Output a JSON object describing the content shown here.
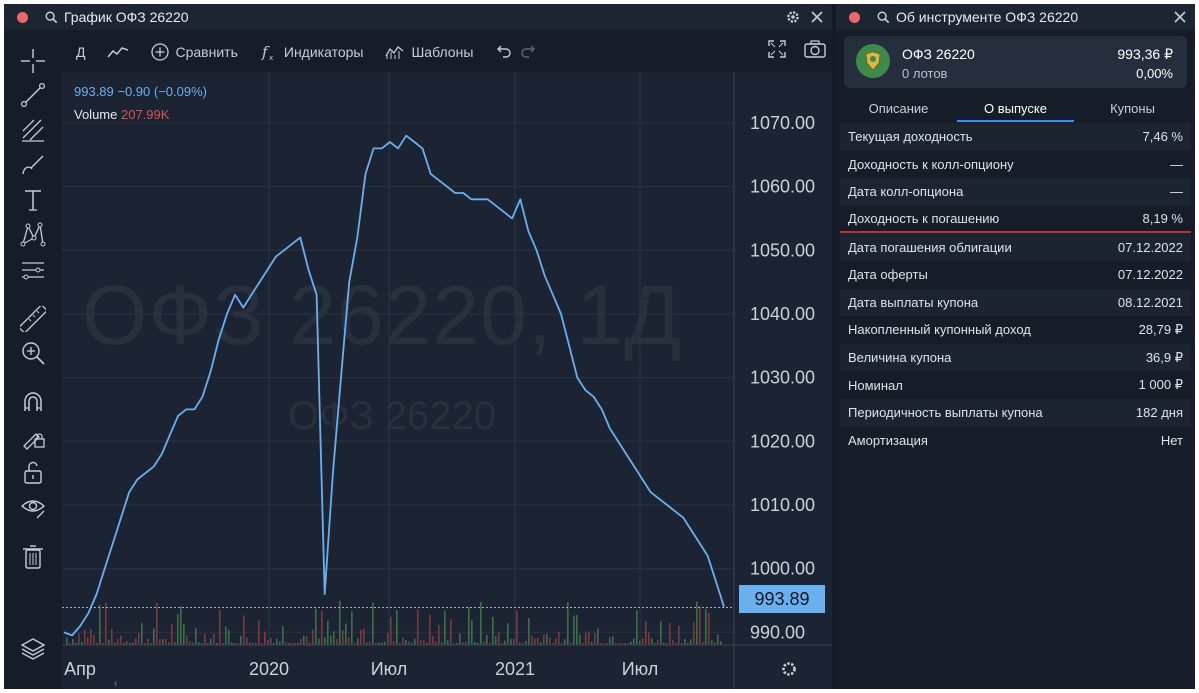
{
  "left_window": {
    "title": "График ОФЗ 26220",
    "toolbar": {
      "interval": "Д",
      "compare": "Сравнить",
      "indicators": "Индикаторы",
      "templates": "Шаблоны"
    }
  },
  "legend": {
    "price_text": "993.89  −0.90 (−0.09%)",
    "volume_label": "Volume",
    "volume_value": "207.99K"
  },
  "watermark": {
    "main": "ОФЗ 26220, 1Д",
    "sub": "ОФЗ 26220"
  },
  "last_price_tag": "993.89",
  "chart_data": {
    "type": "line",
    "series": [
      {
        "values": [
          990,
          989.5,
          991,
          993,
          996,
          1000,
          1004,
          1008,
          1012,
          1014,
          1015,
          1016,
          1018,
          1021,
          1024,
          1025,
          1025,
          1027,
          1031,
          1036,
          1040,
          1043,
          1041,
          1043,
          1045,
          1047,
          1049,
          1050,
          1051,
          1052,
          1047,
          1043,
          996,
          1015,
          1030,
          1045,
          1052,
          1062,
          1066,
          1066,
          1067,
          1066,
          1068,
          1067,
          1066,
          1062,
          1061,
          1060,
          1059,
          1059,
          1058,
          1058,
          1058,
          1057,
          1056,
          1055,
          1058,
          1053,
          1050,
          1046,
          1043,
          1040,
          1035,
          1030,
          1028,
          1027,
          1025,
          1022,
          1020,
          1018,
          1016,
          1014,
          1012,
          1011,
          1010,
          1009,
          1008,
          1006,
          1004,
          1002,
          998,
          994
        ]
      }
    ],
    "x_ticks": [
      "Апр",
      "2020",
      "Июл",
      "2021",
      "Июл"
    ],
    "y_ticks": [
      990,
      1000,
      1010,
      1020,
      1030,
      1040,
      1050,
      1060,
      1070
    ],
    "y_tick_labels": [
      "990.00",
      "1000.00",
      "1010.00",
      "1020.00",
      "1030.00",
      "1040.00",
      "1050.00",
      "1060.00",
      "1070.00"
    ],
    "ylim": [
      988,
      1078
    ],
    "last_value": 993.89,
    "grid": true,
    "colors": {
      "line": "#6ab0ef",
      "background": "#1c2433",
      "grid": "#2a3342"
    }
  },
  "right_window": {
    "title": "Об инструменте ОФЗ 26220",
    "card": {
      "name": "ОФЗ 26220",
      "lots": "0 лотов",
      "price": "993,36 ₽",
      "change": "0,00%"
    },
    "tabs": [
      "Описание",
      "О выпуске",
      "Купоны"
    ],
    "active_tab": 1,
    "rows": [
      {
        "label": "Текущая доходность",
        "value": "7,46 %"
      },
      {
        "label": "Доходность к колл-опциону",
        "value": "—"
      },
      {
        "label": "Дата колл-опциона",
        "value": "—"
      },
      {
        "label": "Доходность к погашению",
        "value": "8,19 %"
      },
      {
        "label": "Дата погашения облигации",
        "value": "07.12.2022"
      },
      {
        "label": "Дата оферты",
        "value": "07.12.2022"
      },
      {
        "label": "Дата выплаты купона",
        "value": "08.12.2021"
      },
      {
        "label": "Накопленный купонный доход",
        "value": "28,79 ₽"
      },
      {
        "label": "Величина купона",
        "value": "36,9 ₽"
      },
      {
        "label": "Номинал",
        "value": "1 000 ₽"
      },
      {
        "label": "Периодичность выплаты купона",
        "value": "182 дня"
      },
      {
        "label": "Амортизация",
        "value": "Нет"
      }
    ]
  }
}
